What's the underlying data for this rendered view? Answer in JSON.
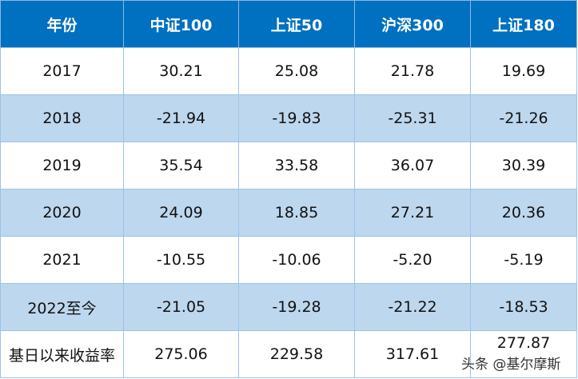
{
  "headers": [
    "年份",
    "中证100",
    "上证50",
    "沪深300",
    "上证180"
  ],
  "rows": [
    [
      "2017",
      "30.21",
      "25.08",
      "21.78",
      "19.69"
    ],
    [
      "2018",
      "-21.94",
      "-19.83",
      "-25.31",
      "-21.26"
    ],
    [
      "2019",
      "35.54",
      "33.58",
      "36.07",
      "30.39"
    ],
    [
      "2020",
      "24.09",
      "18.85",
      "27.21",
      "20.36"
    ],
    [
      "2021",
      "-10.55",
      "-10.06",
      "-5.20",
      "-5.19"
    ],
    [
      "2022至今",
      "-21.05",
      "-19.28",
      "-21.22",
      "-18.53"
    ],
    [
      "基日以来收益率",
      "275.06",
      "229.58",
      "317.61",
      "277.87"
    ]
  ],
  "watermark": "头条 @基尔摩斯",
  "colors": {
    "header": "#0070c0",
    "alt_row": "#bdd7ee",
    "border": "#9dc3e6"
  }
}
